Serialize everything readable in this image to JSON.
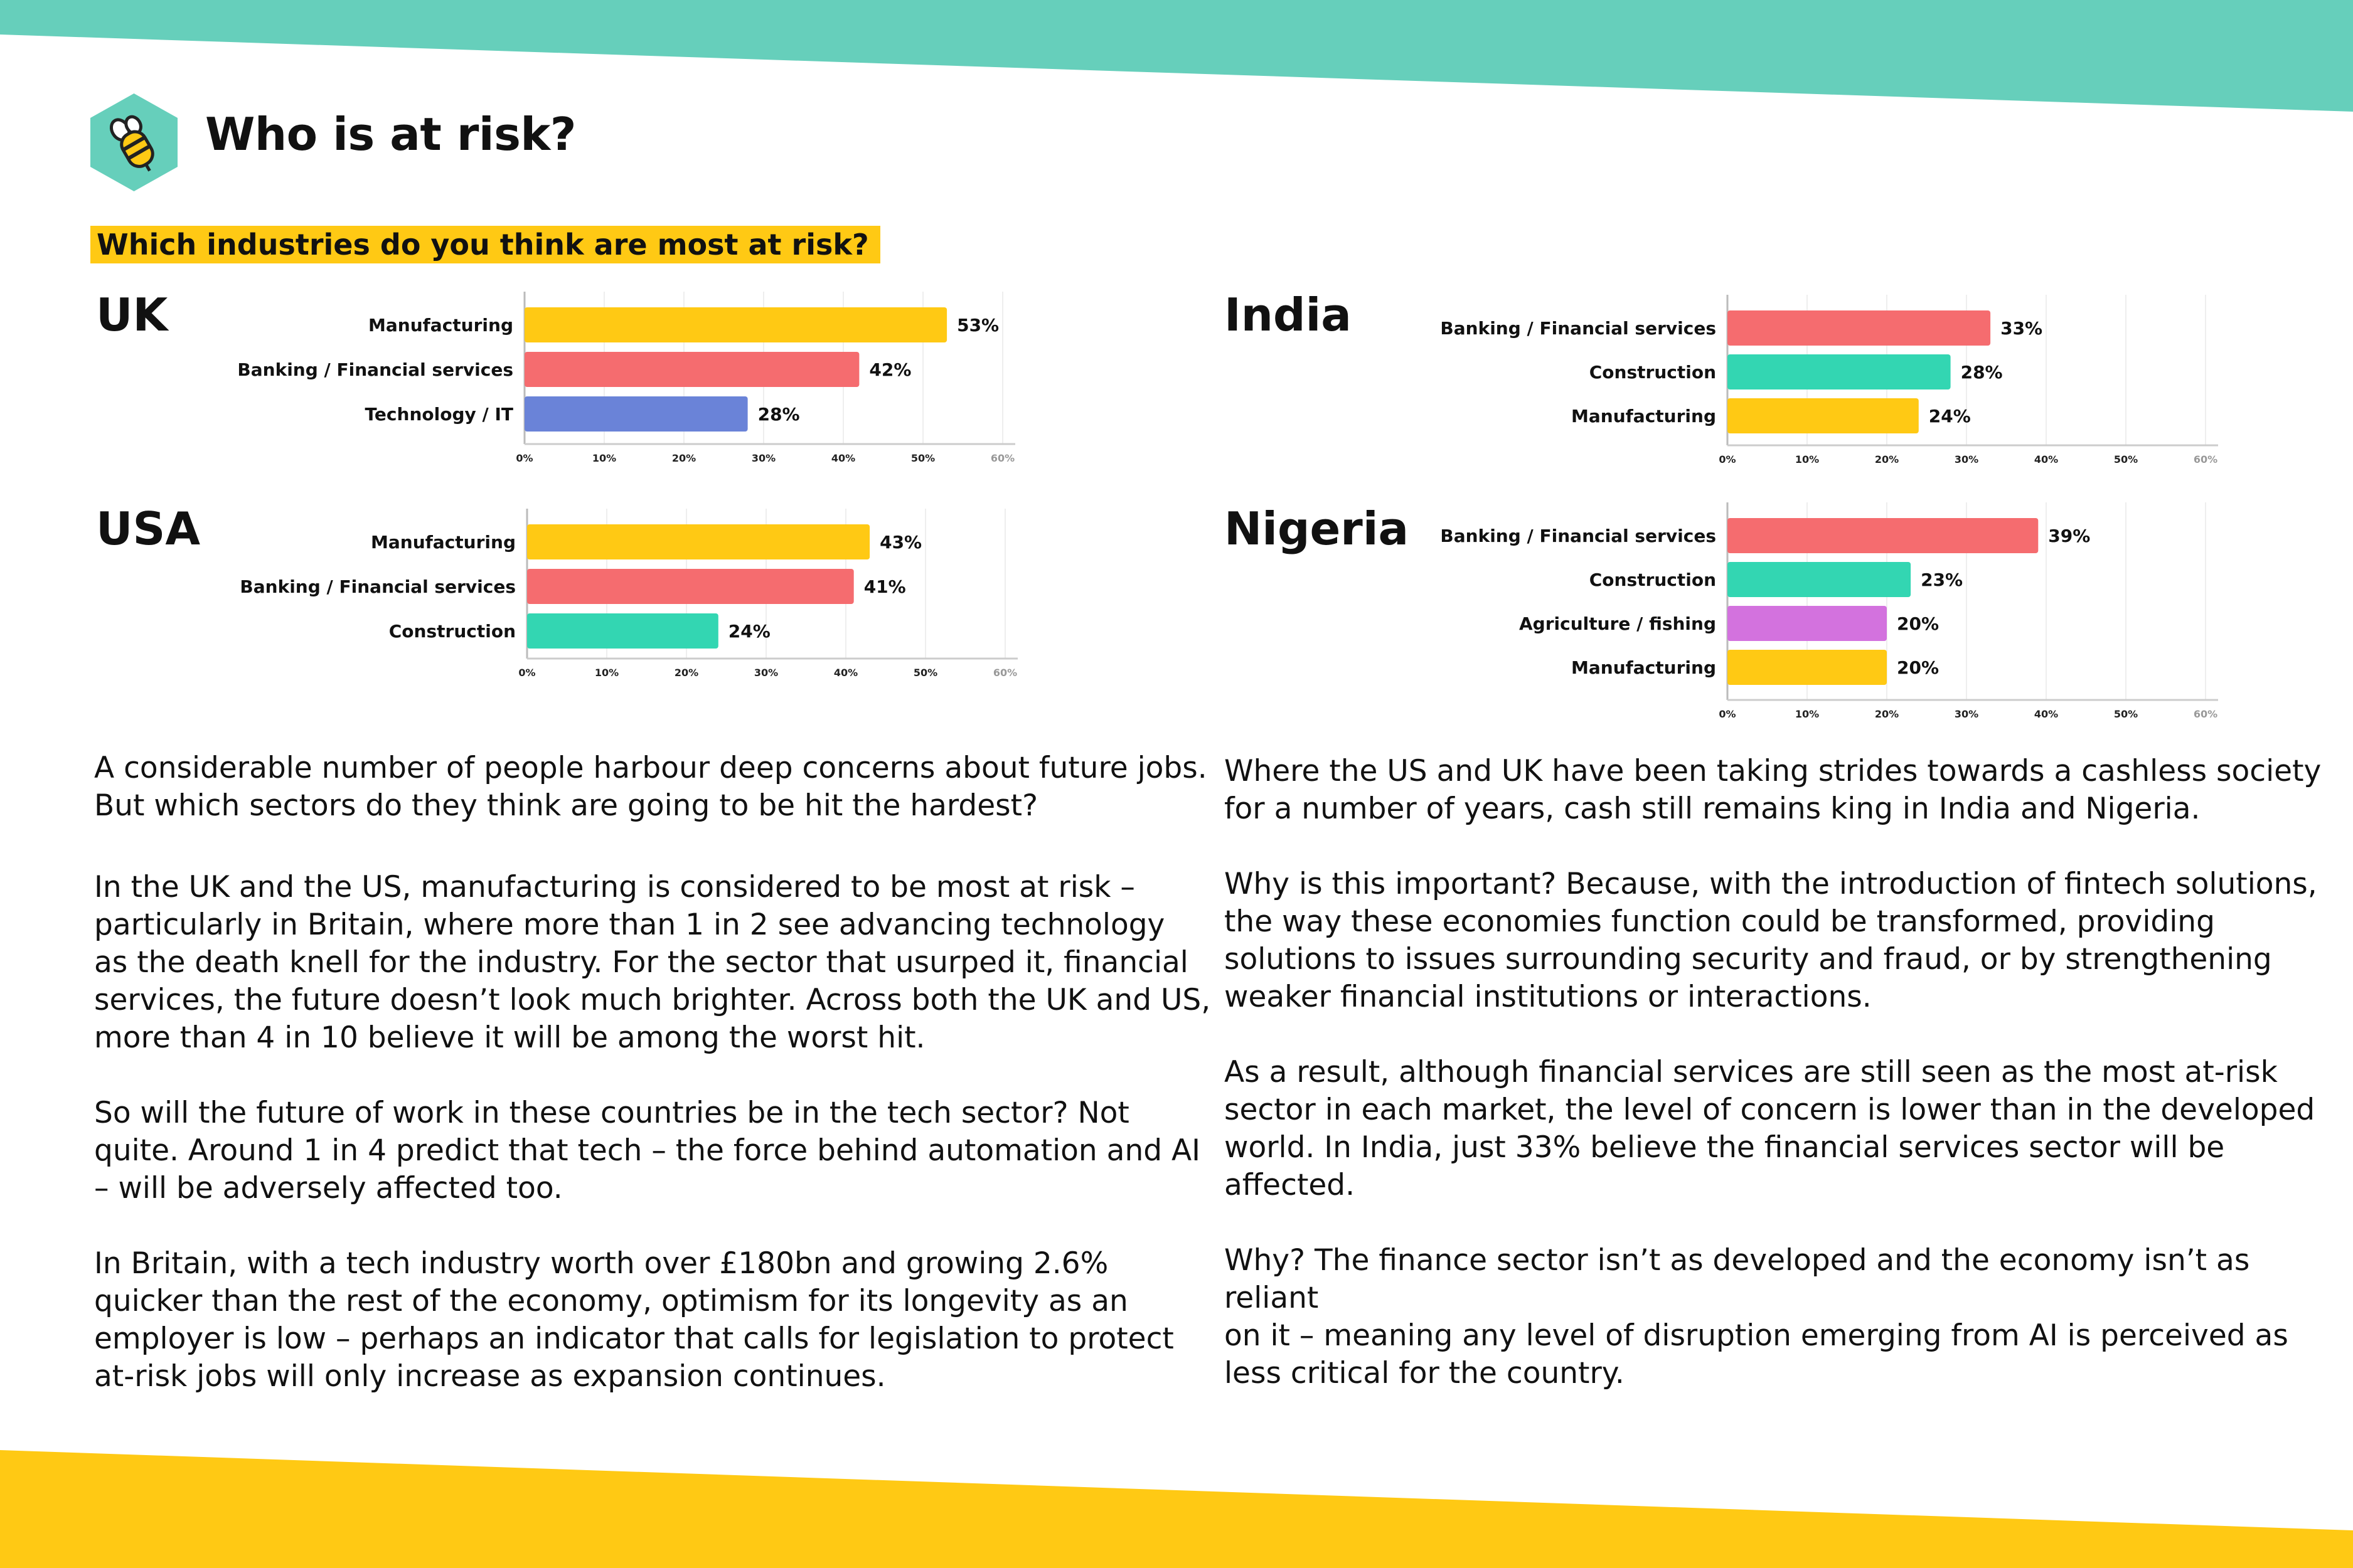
{
  "header": {
    "title": "Who is at risk?",
    "icon": "bee-icon",
    "icon_bg_color": "#66cfbb"
  },
  "question": "Which industries do you think are most at risk?",
  "colors": {
    "top_band": "#66cfbb",
    "bottom_band": "#ffc914"
  },
  "chart_data": [
    {
      "type": "bar",
      "orientation": "horizontal",
      "title": "UK",
      "categories": [
        "Manufacturing",
        "Banking / Financial services",
        "Technology / IT"
      ],
      "values": [
        53,
        42,
        28
      ],
      "data_labels": [
        "53%",
        "42%",
        "28%"
      ],
      "colors": [
        "#ffc914",
        "#f56c6f",
        "#6a83d8"
      ],
      "xlim": [
        0,
        60
      ],
      "ticks": [
        0,
        10,
        20,
        30,
        40,
        50,
        60
      ],
      "tick_labels": [
        "0%",
        "10%",
        "20%",
        "30%",
        "40%",
        "50%",
        "60%"
      ],
      "grid": true
    },
    {
      "type": "bar",
      "orientation": "horizontal",
      "title": "USA",
      "categories": [
        "Manufacturing",
        "Banking / Financial services",
        "Construction"
      ],
      "values": [
        43,
        41,
        24
      ],
      "data_labels": [
        "43%",
        "41%",
        "24%"
      ],
      "colors": [
        "#ffc914",
        "#f56c6f",
        "#33d6b2"
      ],
      "xlim": [
        0,
        60
      ],
      "ticks": [
        0,
        10,
        20,
        30,
        40,
        50,
        60
      ],
      "tick_labels": [
        "0%",
        "10%",
        "20%",
        "30%",
        "40%",
        "50%",
        "60%"
      ],
      "grid": true
    },
    {
      "type": "bar",
      "orientation": "horizontal",
      "title": "India",
      "categories": [
        "Banking / Financial services",
        "Construction",
        "Manufacturing"
      ],
      "values": [
        33,
        28,
        24
      ],
      "data_labels": [
        "33%",
        "28%",
        "24%"
      ],
      "colors": [
        "#f56c6f",
        "#33d6b2",
        "#ffc914"
      ],
      "xlim": [
        0,
        60
      ],
      "ticks": [
        0,
        10,
        20,
        30,
        40,
        50,
        60
      ],
      "tick_labels": [
        "0%",
        "10%",
        "20%",
        "30%",
        "40%",
        "50%",
        "60%"
      ],
      "grid": true
    },
    {
      "type": "bar",
      "orientation": "horizontal",
      "title": "Nigeria",
      "categories": [
        "Banking / Financial services",
        "Construction",
        "Agriculture / fishing",
        "Manufacturing"
      ],
      "values": [
        39,
        23,
        20,
        20
      ],
      "data_labels": [
        "39%",
        "23%",
        "20%",
        "20%"
      ],
      "colors": [
        "#f56c6f",
        "#33d6b2",
        "#d372de",
        "#ffc914"
      ],
      "xlim": [
        0,
        60
      ],
      "ticks": [
        0,
        10,
        20,
        30,
        40,
        50,
        60
      ],
      "tick_labels": [
        "0%",
        "10%",
        "20%",
        "30%",
        "40%",
        "50%",
        "60%"
      ],
      "grid": true
    }
  ],
  "text": {
    "left": [
      "A considerable number of people harbour deep concerns about future jobs.\nBut which sectors do they think are going to be hit the hardest?",
      "In the UK and the US, manufacturing is considered to be most at risk –\nparticularly in Britain, where more than 1 in 2 see advancing technology\nas the death knell for the industry. For the sector that usurped it, financial\nservices, the future doesn’t look much brighter. Across both the UK and US,\nmore than 4 in 10 believe it will be among the worst hit.",
      "So will the future of work in these countries be in the tech sector? Not\nquite. Around 1 in 4 predict that tech – the force behind automation and AI\n– will be adversely affected too.",
      "In Britain, with a tech industry worth over £180bn and growing 2.6%\nquicker than the rest of the economy, optimism for its longevity as an\nemployer is low – perhaps an indicator that calls for legislation to protect\nat-risk jobs will only increase as expansion continues."
    ],
    "right": [
      "Where the US and UK have been taking strides towards a cashless society\nfor a number of years, cash still remains king in India and Nigeria.",
      "Why is this important? Because, with the introduction of fintech solutions,\nthe way these economies function could be transformed, providing\nsolutions to issues surrounding security and fraud, or by strengthening\nweaker financial institutions or interactions.",
      "As a result, although financial services are still seen as the most at-risk\nsector in each market, the level of concern is lower than in the developed\nworld. In India, just 33% believe the financial services sector will be\naffected.",
      "Why? The finance sector isn’t as developed and the economy isn’t as reliant\non it – meaning any level of disruption emerging from AI is perceived as\nless critical for the country."
    ]
  }
}
